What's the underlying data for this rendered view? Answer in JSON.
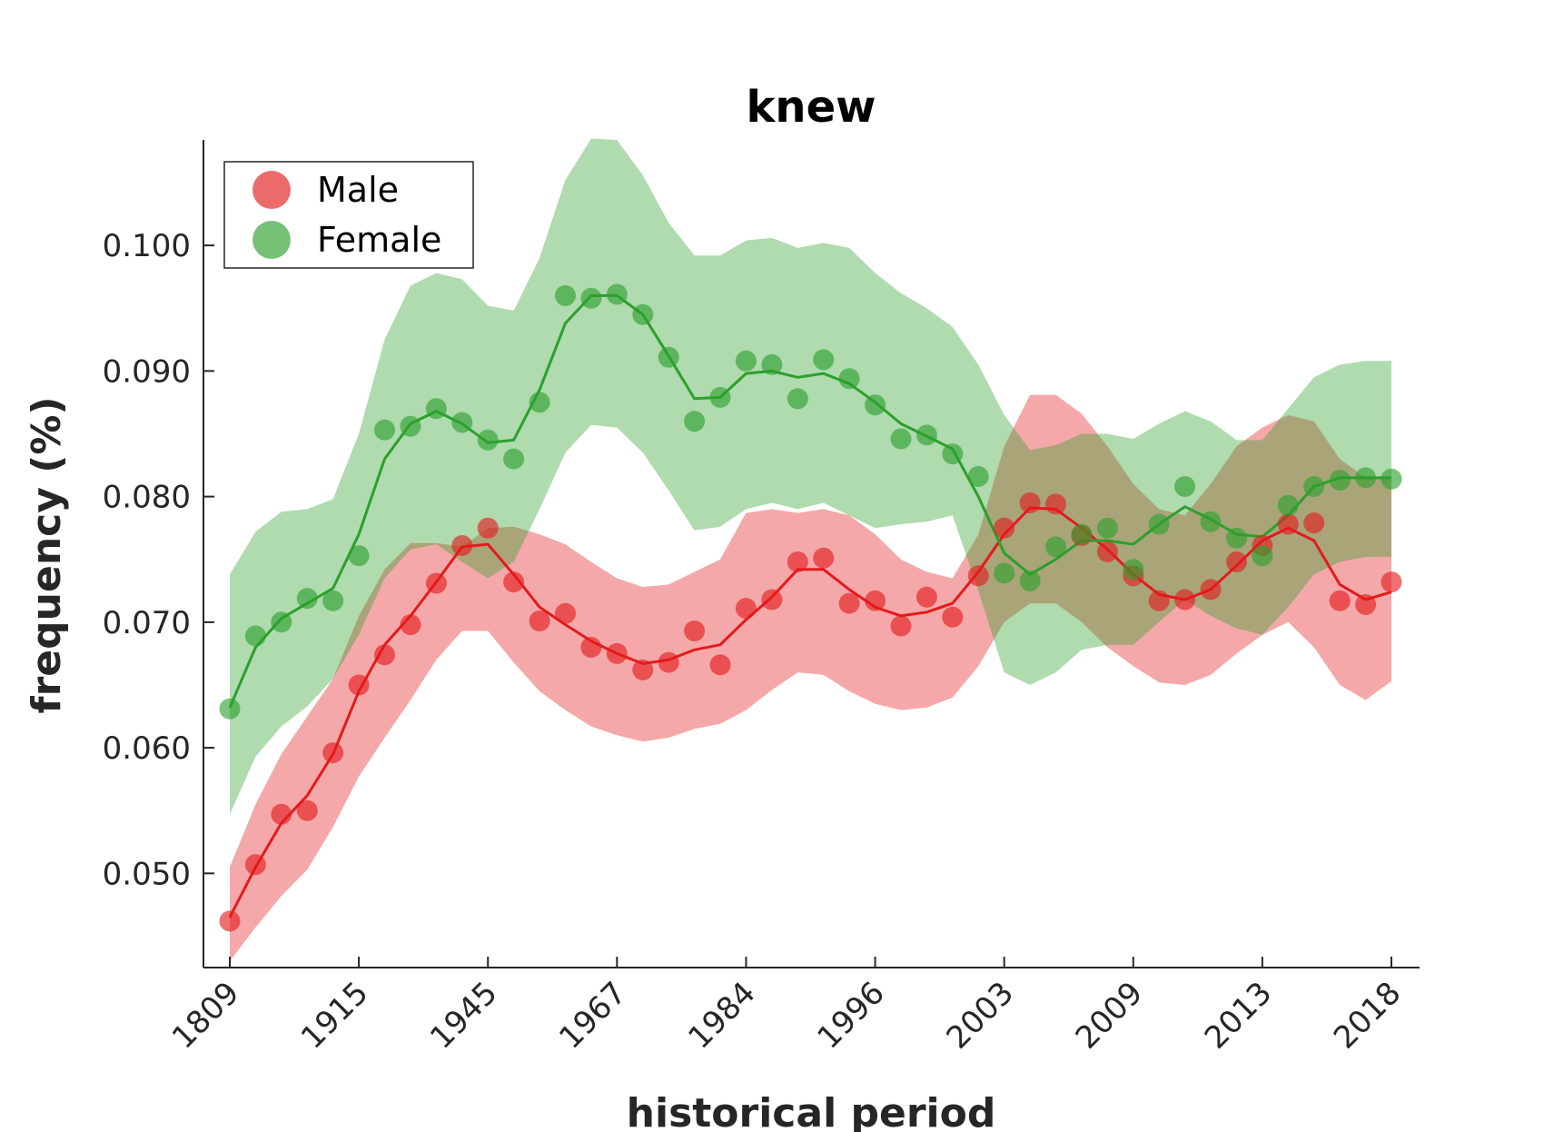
{
  "chart_data": {
    "type": "line",
    "title": "knew",
    "xlabel": "historical period",
    "ylabel": "frequency (%)",
    "x_tick_labels": [
      "1809",
      "1915",
      "1945",
      "1967",
      "1984",
      "1996",
      "2003",
      "2009",
      "2013",
      "2018"
    ],
    "y_ticks": [
      "0.050",
      "0.060",
      "0.070",
      "0.080",
      "0.090",
      "0.100"
    ],
    "ylim": [
      0.0425,
      0.1084
    ],
    "grid": false,
    "legend_position": "top-left",
    "series": [
      {
        "name": "Male",
        "color": "#e41a1c",
        "points": [
          0.0462,
          0.0507,
          0.0547,
          0.055,
          0.0596,
          0.065,
          0.0674,
          0.0698,
          0.0731,
          0.0761,
          0.0775,
          0.0732,
          0.0701,
          0.0707,
          0.068,
          0.0675,
          0.0662,
          0.0668,
          0.0693,
          0.0666,
          0.0711,
          0.0718,
          0.0748,
          0.0751,
          0.0715,
          0.0717,
          0.0697,
          0.072,
          0.0704,
          0.0737,
          0.0775,
          0.0795,
          0.0794,
          0.0769,
          0.0756,
          0.0737,
          0.0717,
          0.0718,
          0.0726,
          0.0748,
          0.0761,
          0.0778,
          0.0779,
          0.0717,
          0.0714,
          0.0732
        ],
        "smoothed": [
          0.0465,
          0.0505,
          0.054,
          0.0562,
          0.0595,
          0.0645,
          0.0682,
          0.0705,
          0.0732,
          0.076,
          0.0762,
          0.0738,
          0.0712,
          0.0698,
          0.0685,
          0.0675,
          0.0667,
          0.067,
          0.0678,
          0.0682,
          0.0702,
          0.072,
          0.0742,
          0.0742,
          0.0726,
          0.0712,
          0.0705,
          0.0708,
          0.0715,
          0.074,
          0.077,
          0.0791,
          0.079,
          0.0775,
          0.0758,
          0.0738,
          0.0722,
          0.0718,
          0.0726,
          0.0745,
          0.0765,
          0.0775,
          0.0765,
          0.073,
          0.0718,
          0.0724
        ],
        "upper": [
          0.0505,
          0.0555,
          0.0595,
          0.0625,
          0.0655,
          0.0705,
          0.0742,
          0.0763,
          0.0763,
          0.076,
          0.0775,
          0.0776,
          0.077,
          0.0762,
          0.0748,
          0.0735,
          0.0728,
          0.073,
          0.074,
          0.075,
          0.0787,
          0.079,
          0.0787,
          0.079,
          0.0785,
          0.077,
          0.075,
          0.074,
          0.0735,
          0.077,
          0.084,
          0.0881,
          0.0881,
          0.0866,
          0.084,
          0.081,
          0.079,
          0.0785,
          0.081,
          0.084,
          0.0855,
          0.0865,
          0.086,
          0.083,
          0.0815,
          0.0815
        ],
        "lower": [
          0.043,
          0.0457,
          0.0482,
          0.0503,
          0.0537,
          0.0577,
          0.0608,
          0.0638,
          0.067,
          0.0693,
          0.0693,
          0.0668,
          0.0645,
          0.063,
          0.0617,
          0.061,
          0.0605,
          0.0608,
          0.0615,
          0.0619,
          0.063,
          0.0646,
          0.066,
          0.0658,
          0.0645,
          0.0635,
          0.063,
          0.0632,
          0.064,
          0.0665,
          0.07,
          0.0715,
          0.0715,
          0.07,
          0.068,
          0.0665,
          0.0652,
          0.065,
          0.0658,
          0.0675,
          0.069,
          0.07,
          0.068,
          0.065,
          0.0638,
          0.0653
        ]
      },
      {
        "name": "Female",
        "color": "#2ca02c",
        "points": [
          0.0631,
          0.0689,
          0.07,
          0.0719,
          0.0717,
          0.0753,
          0.0853,
          0.0856,
          0.087,
          0.0859,
          0.0845,
          0.083,
          0.0875,
          0.096,
          0.0958,
          0.0961,
          0.0945,
          0.0911,
          0.086,
          0.0879,
          0.0908,
          0.0905,
          0.0878,
          0.0909,
          0.0894,
          0.0873,
          0.0846,
          0.0849,
          0.0834,
          0.0816,
          0.0739,
          0.0733,
          0.076,
          0.077,
          0.0775,
          0.0742,
          0.0778,
          0.0808,
          0.078,
          0.0767,
          0.0753,
          0.0793,
          0.0808,
          0.0813,
          0.0815,
          0.0814
        ],
        "smoothed": [
          0.0632,
          0.068,
          0.0703,
          0.0715,
          0.0727,
          0.077,
          0.083,
          0.0858,
          0.0868,
          0.0858,
          0.0843,
          0.0845,
          0.0885,
          0.0938,
          0.096,
          0.096,
          0.0945,
          0.0912,
          0.0878,
          0.0879,
          0.0898,
          0.09,
          0.0895,
          0.0898,
          0.089,
          0.0875,
          0.0858,
          0.0848,
          0.0838,
          0.08,
          0.0755,
          0.0738,
          0.075,
          0.0765,
          0.0765,
          0.0762,
          0.0778,
          0.0792,
          0.0782,
          0.077,
          0.0768,
          0.0785,
          0.0808,
          0.0815,
          0.0815,
          0.0815
        ],
        "upper": [
          0.0738,
          0.0772,
          0.0788,
          0.079,
          0.0798,
          0.085,
          0.0925,
          0.0968,
          0.0978,
          0.0973,
          0.0952,
          0.0948,
          0.099,
          0.1052,
          0.1085,
          0.1084,
          0.1056,
          0.1018,
          0.0992,
          0.0992,
          0.1004,
          0.1006,
          0.0998,
          0.1002,
          0.0998,
          0.0978,
          0.0962,
          0.095,
          0.0935,
          0.0905,
          0.0865,
          0.0837,
          0.0841,
          0.085,
          0.085,
          0.0846,
          0.0858,
          0.0868,
          0.086,
          0.0845,
          0.0845,
          0.087,
          0.0895,
          0.0905,
          0.0908,
          0.0908
        ],
        "lower": [
          0.0547,
          0.0593,
          0.0617,
          0.0633,
          0.0655,
          0.069,
          0.0735,
          0.0758,
          0.0762,
          0.0748,
          0.0735,
          0.0748,
          0.079,
          0.0835,
          0.0857,
          0.0855,
          0.0835,
          0.0805,
          0.0773,
          0.0776,
          0.079,
          0.0795,
          0.079,
          0.0795,
          0.0785,
          0.0775,
          0.0778,
          0.078,
          0.0785,
          0.0725,
          0.066,
          0.065,
          0.066,
          0.0678,
          0.0682,
          0.0682,
          0.07,
          0.0718,
          0.0705,
          0.0695,
          0.069,
          0.0712,
          0.0738,
          0.0748,
          0.0752,
          0.0752
        ]
      }
    ]
  }
}
